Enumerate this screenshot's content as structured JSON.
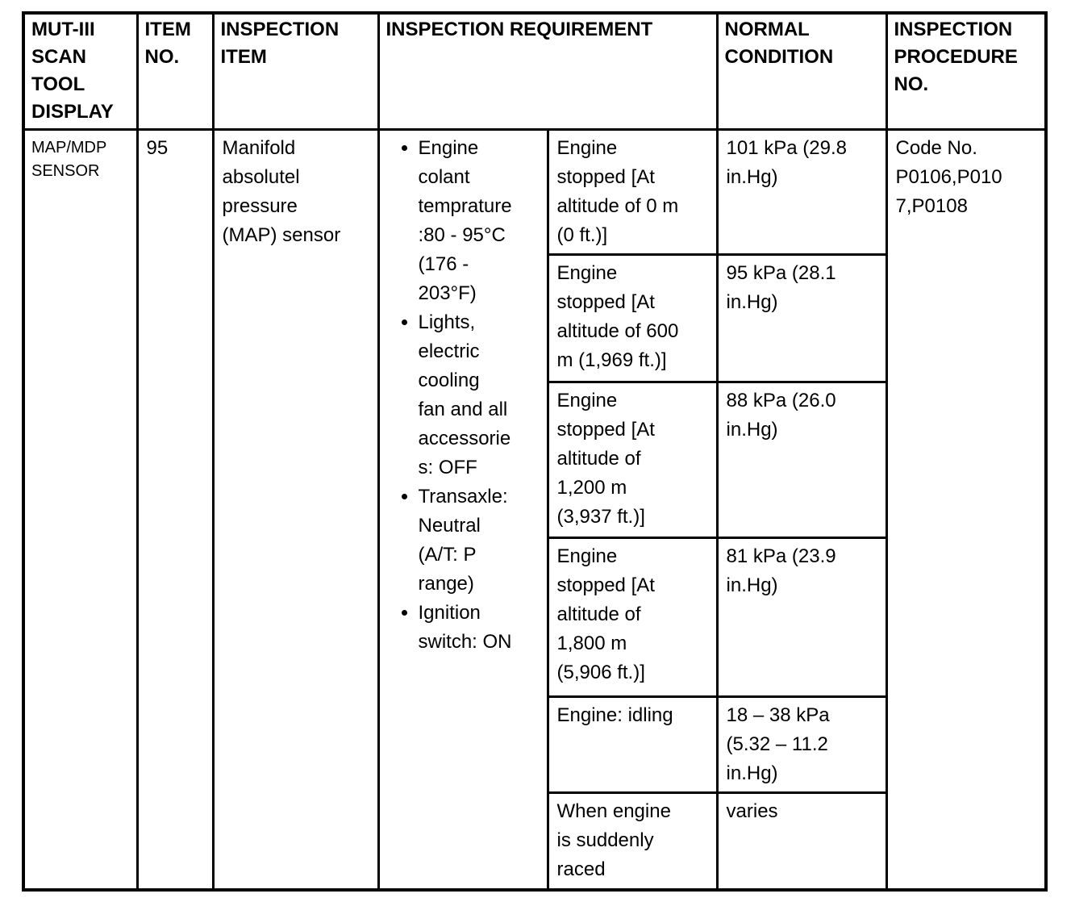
{
  "table": {
    "headers": [
      "MUT-III SCAN TOOL DISPLAY",
      "ITEM NO.",
      "INSPECTION ITEM",
      "INSPECTION REQUIREMENT",
      "NORMAL CONDITION",
      "INSPECTION PROCEDURE NO."
    ],
    "row": {
      "scan_tool_display": "MAP/MDP SENSOR",
      "item_no": "95",
      "inspection_item": "Manifold absolutel pressure (MAP) sensor",
      "requirement_bullets": [
        "Engine colant temprature :80 - 95°C (176 - 203°F)",
        "Lights, electric cooling fan and all accessories: OFF",
        "Transaxle: Neutral (A/T: P range)",
        "Ignition switch: ON"
      ],
      "conditions": [
        {
          "condition": "Engine stopped [At altitude of 0 m (0 ft.)]",
          "normal": "101 kPa (29.8 in.Hg)"
        },
        {
          "condition": "Engine stopped [At altitude of 600 m (1,969 ft.)]",
          "normal": "95 kPa (28.1 in.Hg)"
        },
        {
          "condition": "Engine stopped [At altitude of 1,200 m (3,937 ft.)]",
          "normal": "88 kPa (26.0 in.Hg)"
        },
        {
          "condition": "Engine stopped [At altitude of 1,800 m (5,906 ft.)]",
          "normal": "81 kPa (23.9 in.Hg)"
        },
        {
          "condition": "Engine: idling",
          "normal": "18 – 38 kPa (5.32 – 11.2 in.Hg)"
        },
        {
          "condition": "When engine is suddenly raced",
          "normal": "varies"
        }
      ],
      "procedure_no": "Code No. P0106,P0107,P0108"
    }
  }
}
